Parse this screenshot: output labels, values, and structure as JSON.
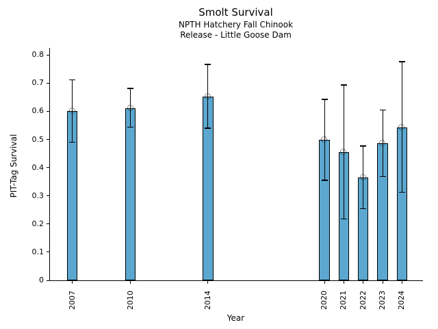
{
  "chart_data": {
    "type": "bar",
    "title": "Smolt Survival",
    "subtitle": [
      "NPTH Hatchery Fall Chinook",
      "Release - Little Goose Dam"
    ],
    "xlabel": "Year",
    "ylabel": "PIT-Tag Survival",
    "x": [
      2007,
      2010,
      2014,
      2020,
      2021,
      2022,
      2023,
      2024
    ],
    "values": [
      0.6,
      0.612,
      0.653,
      0.498,
      0.456,
      0.366,
      0.487,
      0.543
    ],
    "error_low": [
      0.49,
      0.544,
      0.54,
      0.355,
      0.218,
      0.254,
      0.369,
      0.313
    ],
    "error_high": [
      0.712,
      0.682,
      0.766,
      0.643,
      0.694,
      0.477,
      0.605,
      0.776
    ],
    "yticks": [
      0,
      0.1,
      0.2,
      0.3,
      0.4,
      0.5,
      0.6,
      0.7,
      0.8
    ],
    "ytick_labels": [
      "0",
      "0.1",
      "0.2",
      "0.3",
      "0.4",
      "0.5",
      "0.6",
      "0.7",
      "0.8"
    ],
    "ylim": [
      0,
      0.825
    ],
    "xlim": [
      2005.85,
      2025.08
    ],
    "bar_width_years": 0.55,
    "grid": "off",
    "legend": "none",
    "bar_color": "#5BA7CF",
    "bar_edge_color": "#000000",
    "error_color": "#000000",
    "marker": "open-circle-dotted"
  }
}
